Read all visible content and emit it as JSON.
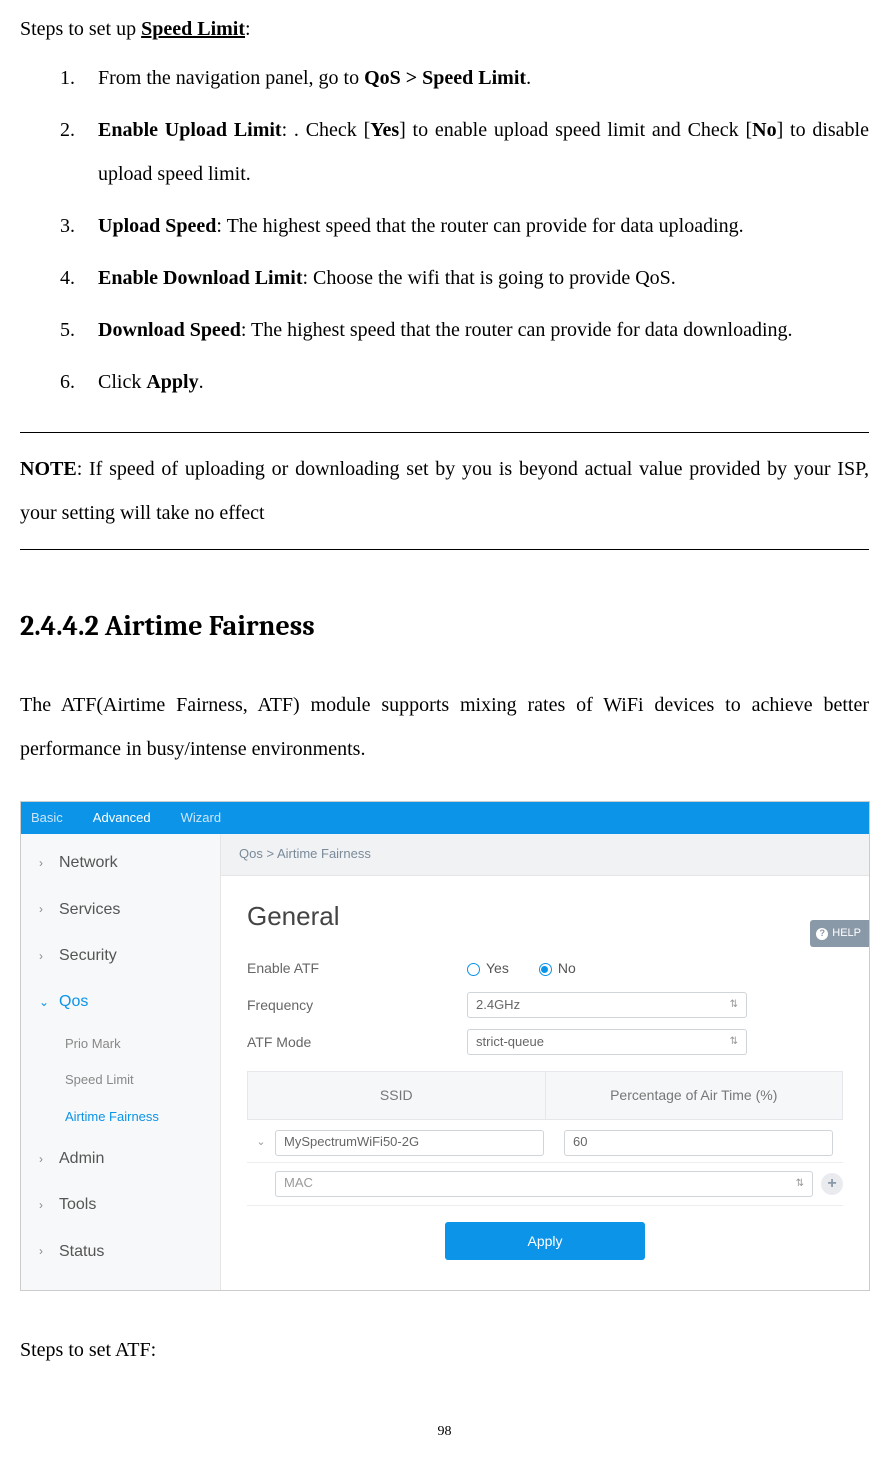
{
  "intro_prefix": "Steps to set up ",
  "intro_bold": "Speed Limit",
  "intro_suffix": ":",
  "steps": {
    "s1_a": "From the navigation panel, go to ",
    "s1_b": "QoS > Speed Limit",
    "s1_c": ".",
    "s2_a": "Enable Upload Limit",
    "s2_b": ": . Check [",
    "s2_c": "Yes",
    "s2_d": "] to enable upload speed limit and Check [",
    "s2_e": "No",
    "s2_f": "] to disable upload speed limit.",
    "s3_a": "Upload Speed",
    "s3_b": ": The highest speed that the router can provide for data uploading.",
    "s4_a": "Enable Download Limit",
    "s4_b": ": Choose the wifi that is going to provide QoS.",
    "s5_a": "Download Speed",
    "s5_b": ": The highest speed that the router can provide for data downloading.",
    "s6_a": "Click ",
    "s6_b": "Apply",
    "s6_c": "."
  },
  "note_label": "NOTE",
  "note_text": ": If speed of uploading or downloading set by you is beyond actual value provided by your ISP, your setting will take no effect",
  "section_title": "2.4.4.2 Airtime Fairness",
  "atf_para": "The ATF(Airtime Fairness, ATF) module supports mixing rates of WiFi devices to achieve better performance in busy/intense environments.",
  "ui": {
    "tabs": {
      "basic": "Basic",
      "advanced": "Advanced",
      "wizard": "Wizard"
    },
    "sidebar": {
      "network": "Network",
      "services": "Services",
      "security": "Security",
      "qos": "Qos",
      "prio": "Prio Mark",
      "speed": "Speed Limit",
      "atf": "Airtime Fairness",
      "admin": "Admin",
      "tools": "Tools",
      "status": "Status"
    },
    "breadcrumb": "Qos > Airtime Fairness",
    "general": "General",
    "enable_atf": "Enable ATF",
    "yes": "Yes",
    "no": "No",
    "frequency": "Frequency",
    "freq_val": "2.4GHz",
    "atf_mode": "ATF Mode",
    "mode_val": "strict-queue",
    "th_ssid": "SSID",
    "th_pct": "Percentage of Air Time (%)",
    "ssid_val": "MySpectrumWiFi50-2G",
    "pct_val": "60",
    "mac": "MAC",
    "apply": "Apply",
    "help": "HELP"
  },
  "atf_steps_label": "Steps to set ATF:",
  "page_number": "98"
}
